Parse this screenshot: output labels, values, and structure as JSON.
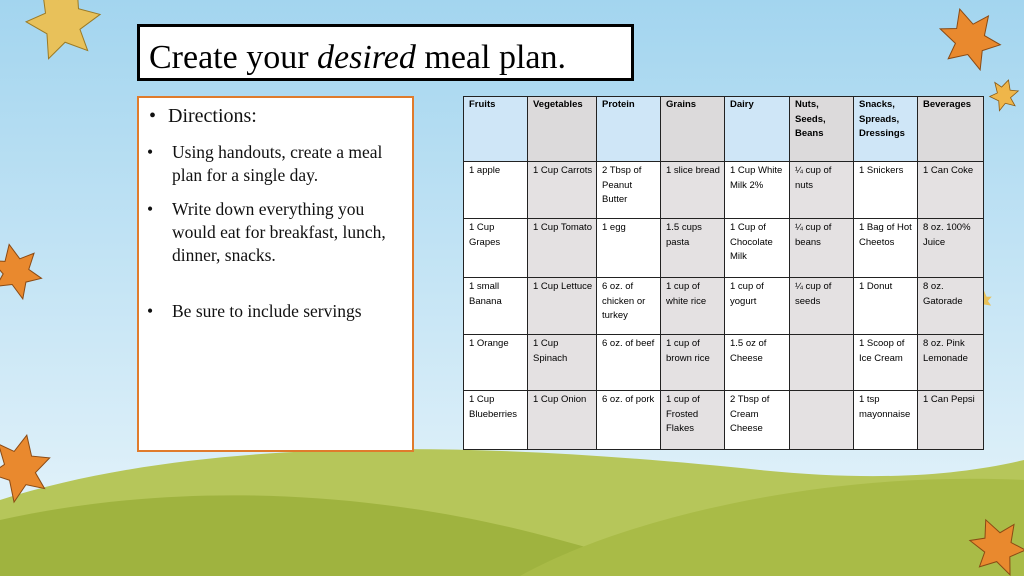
{
  "title": {
    "pre": "Create your ",
    "emph": "desired",
    "post": " meal plan."
  },
  "directions": {
    "heading": "Directions:",
    "items": [
      "Using handouts, create a meal plan for a single day.",
      "Write down everything you would eat for breakfast, lunch, dinner, snacks.",
      "Be sure to include servings"
    ]
  },
  "table": {
    "headers": [
      "Fruits",
      "Vegetables",
      "Protein",
      "Grains",
      "Dairy",
      "Nuts, Seeds, Beans",
      "Snacks, Spreads, Dressings",
      "Beverages"
    ],
    "rows": [
      [
        "1 apple",
        "1 Cup Carrots",
        "2 Tbsp of Peanut Butter",
        "1 slice bread",
        "1 Cup White Milk 2%",
        "¼ cup of nuts",
        "1 Snickers",
        "1 Can Coke"
      ],
      [
        "1 Cup Grapes",
        "1 Cup Tomato",
        "1 egg",
        "1.5 cups pasta",
        "1 Cup of Chocolate Milk",
        "¼ cup of beans",
        "1 Bag of Hot Cheetos",
        "8 oz. 100% Juice"
      ],
      [
        "1 small Banana",
        "1 Cup Lettuce",
        "6 oz. of chicken or turkey",
        "1 cup of white rice",
        "1 cup of yogurt",
        "¼ cup of seeds",
        "1 Donut",
        "8 oz. Gatorade"
      ],
      [
        "1 Orange",
        "1 Cup Spinach",
        "6 oz. of beef",
        "1 cup of brown rice",
        "1.5 oz of Cheese",
        "",
        "1 Scoop of Ice Cream",
        "8 oz. Pink Lemonade"
      ],
      [
        "1 Cup Blueberries",
        "1 Cup Onion",
        "6 oz. of pork",
        "1 cup of Frosted Flakes",
        "2 Tbsp of Cream Cheese",
        "",
        "1 tsp mayonnaise",
        "1 Can Pepsi"
      ]
    ]
  },
  "colors": {
    "sky_top": "#a9d9f1",
    "sky_bottom": "#e6f4fb",
    "hill_light": "#a6b84a",
    "hill_dark": "#8d9f34",
    "directions_border": "#e07b2c",
    "leaf_orange": "#e9892e",
    "leaf_yellow": "#e8c15a"
  }
}
